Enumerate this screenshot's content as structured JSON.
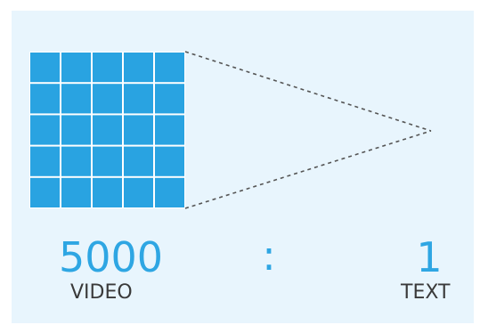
{
  "ratio": {
    "left_value": "5000",
    "separator": ":",
    "right_value": "1",
    "left_label": "VIDEO",
    "right_label": "TEXT"
  },
  "grid": {
    "rows": 5,
    "cols": 5,
    "fill_color": "#29a3e1",
    "gap_color": "#ffffff"
  },
  "colors": {
    "panel_background": "#e8f5fd",
    "accent": "#2ea6e3",
    "label": "#3a3a3a",
    "dashed_line": "#555555"
  }
}
